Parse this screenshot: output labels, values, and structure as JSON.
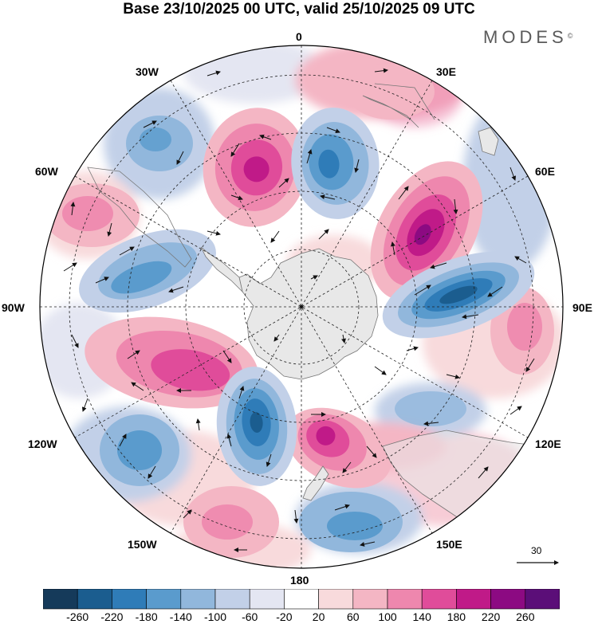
{
  "title": "Base 23/10/2025 00 UTC, valid 25/10/2025 09 UTC",
  "brand": {
    "name": "MODES",
    "mark": "©"
  },
  "longitude_labels": {
    "top": "0",
    "top_right": "30E",
    "upper_right": "60E",
    "right": "90E",
    "lower_right": "120E",
    "bottom_right": "150E",
    "bottom": "180",
    "bottom_left": "150W",
    "lower_left": "120W",
    "left": "90W",
    "upper_left": "60W",
    "top_left": "30W"
  },
  "reference_vector": {
    "label": "30"
  },
  "colorbar": {
    "levels": [
      "-260",
      "-220",
      "-180",
      "-140",
      "-100",
      "-60",
      "-20",
      "20",
      "60",
      "100",
      "140",
      "180",
      "220",
      "260"
    ],
    "colors": [
      "#153a5a",
      "#1b5d8f",
      "#2f7cb8",
      "#5a9bcd",
      "#91b7dc",
      "#c2d0e8",
      "#e4e6f2",
      "#ffffff",
      "#f8dadc",
      "#f4b6c4",
      "#ee87ae",
      "#e04c9a",
      "#c01a88",
      "#8c0a82",
      "#5b0e78"
    ]
  },
  "map_colors": {
    "land": "#e8e8e8",
    "coast": "#777777",
    "grid": "#222222",
    "arrow": "#111111"
  }
}
